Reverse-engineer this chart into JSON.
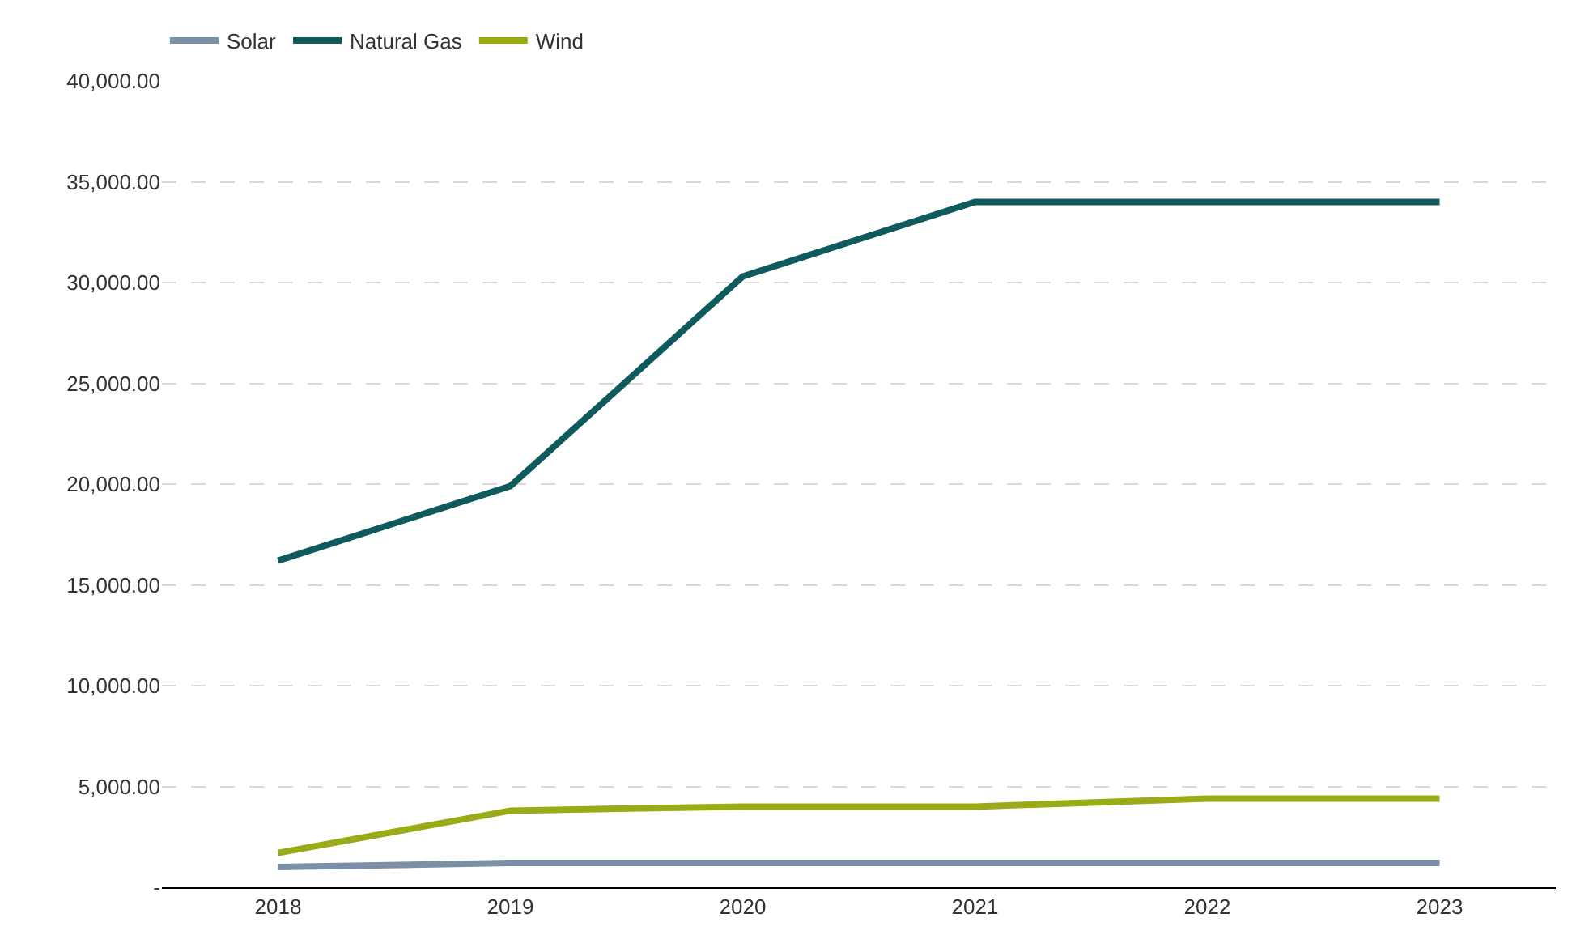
{
  "chart_data": {
    "type": "line",
    "categories": [
      "2018",
      "2019",
      "2020",
      "2021",
      "2022",
      "2023"
    ],
    "series": [
      {
        "name": "Solar",
        "color": "#7b8fa6",
        "values": [
          1000,
          1200,
          1200,
          1200,
          1200,
          1200
        ]
      },
      {
        "name": "Natural Gas",
        "color": "#0e5a5c",
        "values": [
          16200,
          19900,
          30300,
          34000,
          34000,
          34000
        ]
      },
      {
        "name": "Wind",
        "color": "#9aab18",
        "values": [
          1700,
          3800,
          4000,
          4000,
          4400,
          4400
        ]
      }
    ],
    "ylim": [
      0,
      40000
    ],
    "yticks": [
      {
        "value": 0,
        "label": "-"
      },
      {
        "value": 5000,
        "label": "5,000.00"
      },
      {
        "value": 10000,
        "label": "10,000.00"
      },
      {
        "value": 15000,
        "label": "15,000.00"
      },
      {
        "value": 20000,
        "label": "20,000.00"
      },
      {
        "value": 25000,
        "label": "25,000.00"
      },
      {
        "value": 30000,
        "label": "30,000.00"
      },
      {
        "value": 35000,
        "label": "35,000.00"
      },
      {
        "value": 40000,
        "label": "40,000.00"
      }
    ],
    "grid": "y",
    "legend": "top left",
    "marker": "none",
    "line_style": "solid"
  }
}
